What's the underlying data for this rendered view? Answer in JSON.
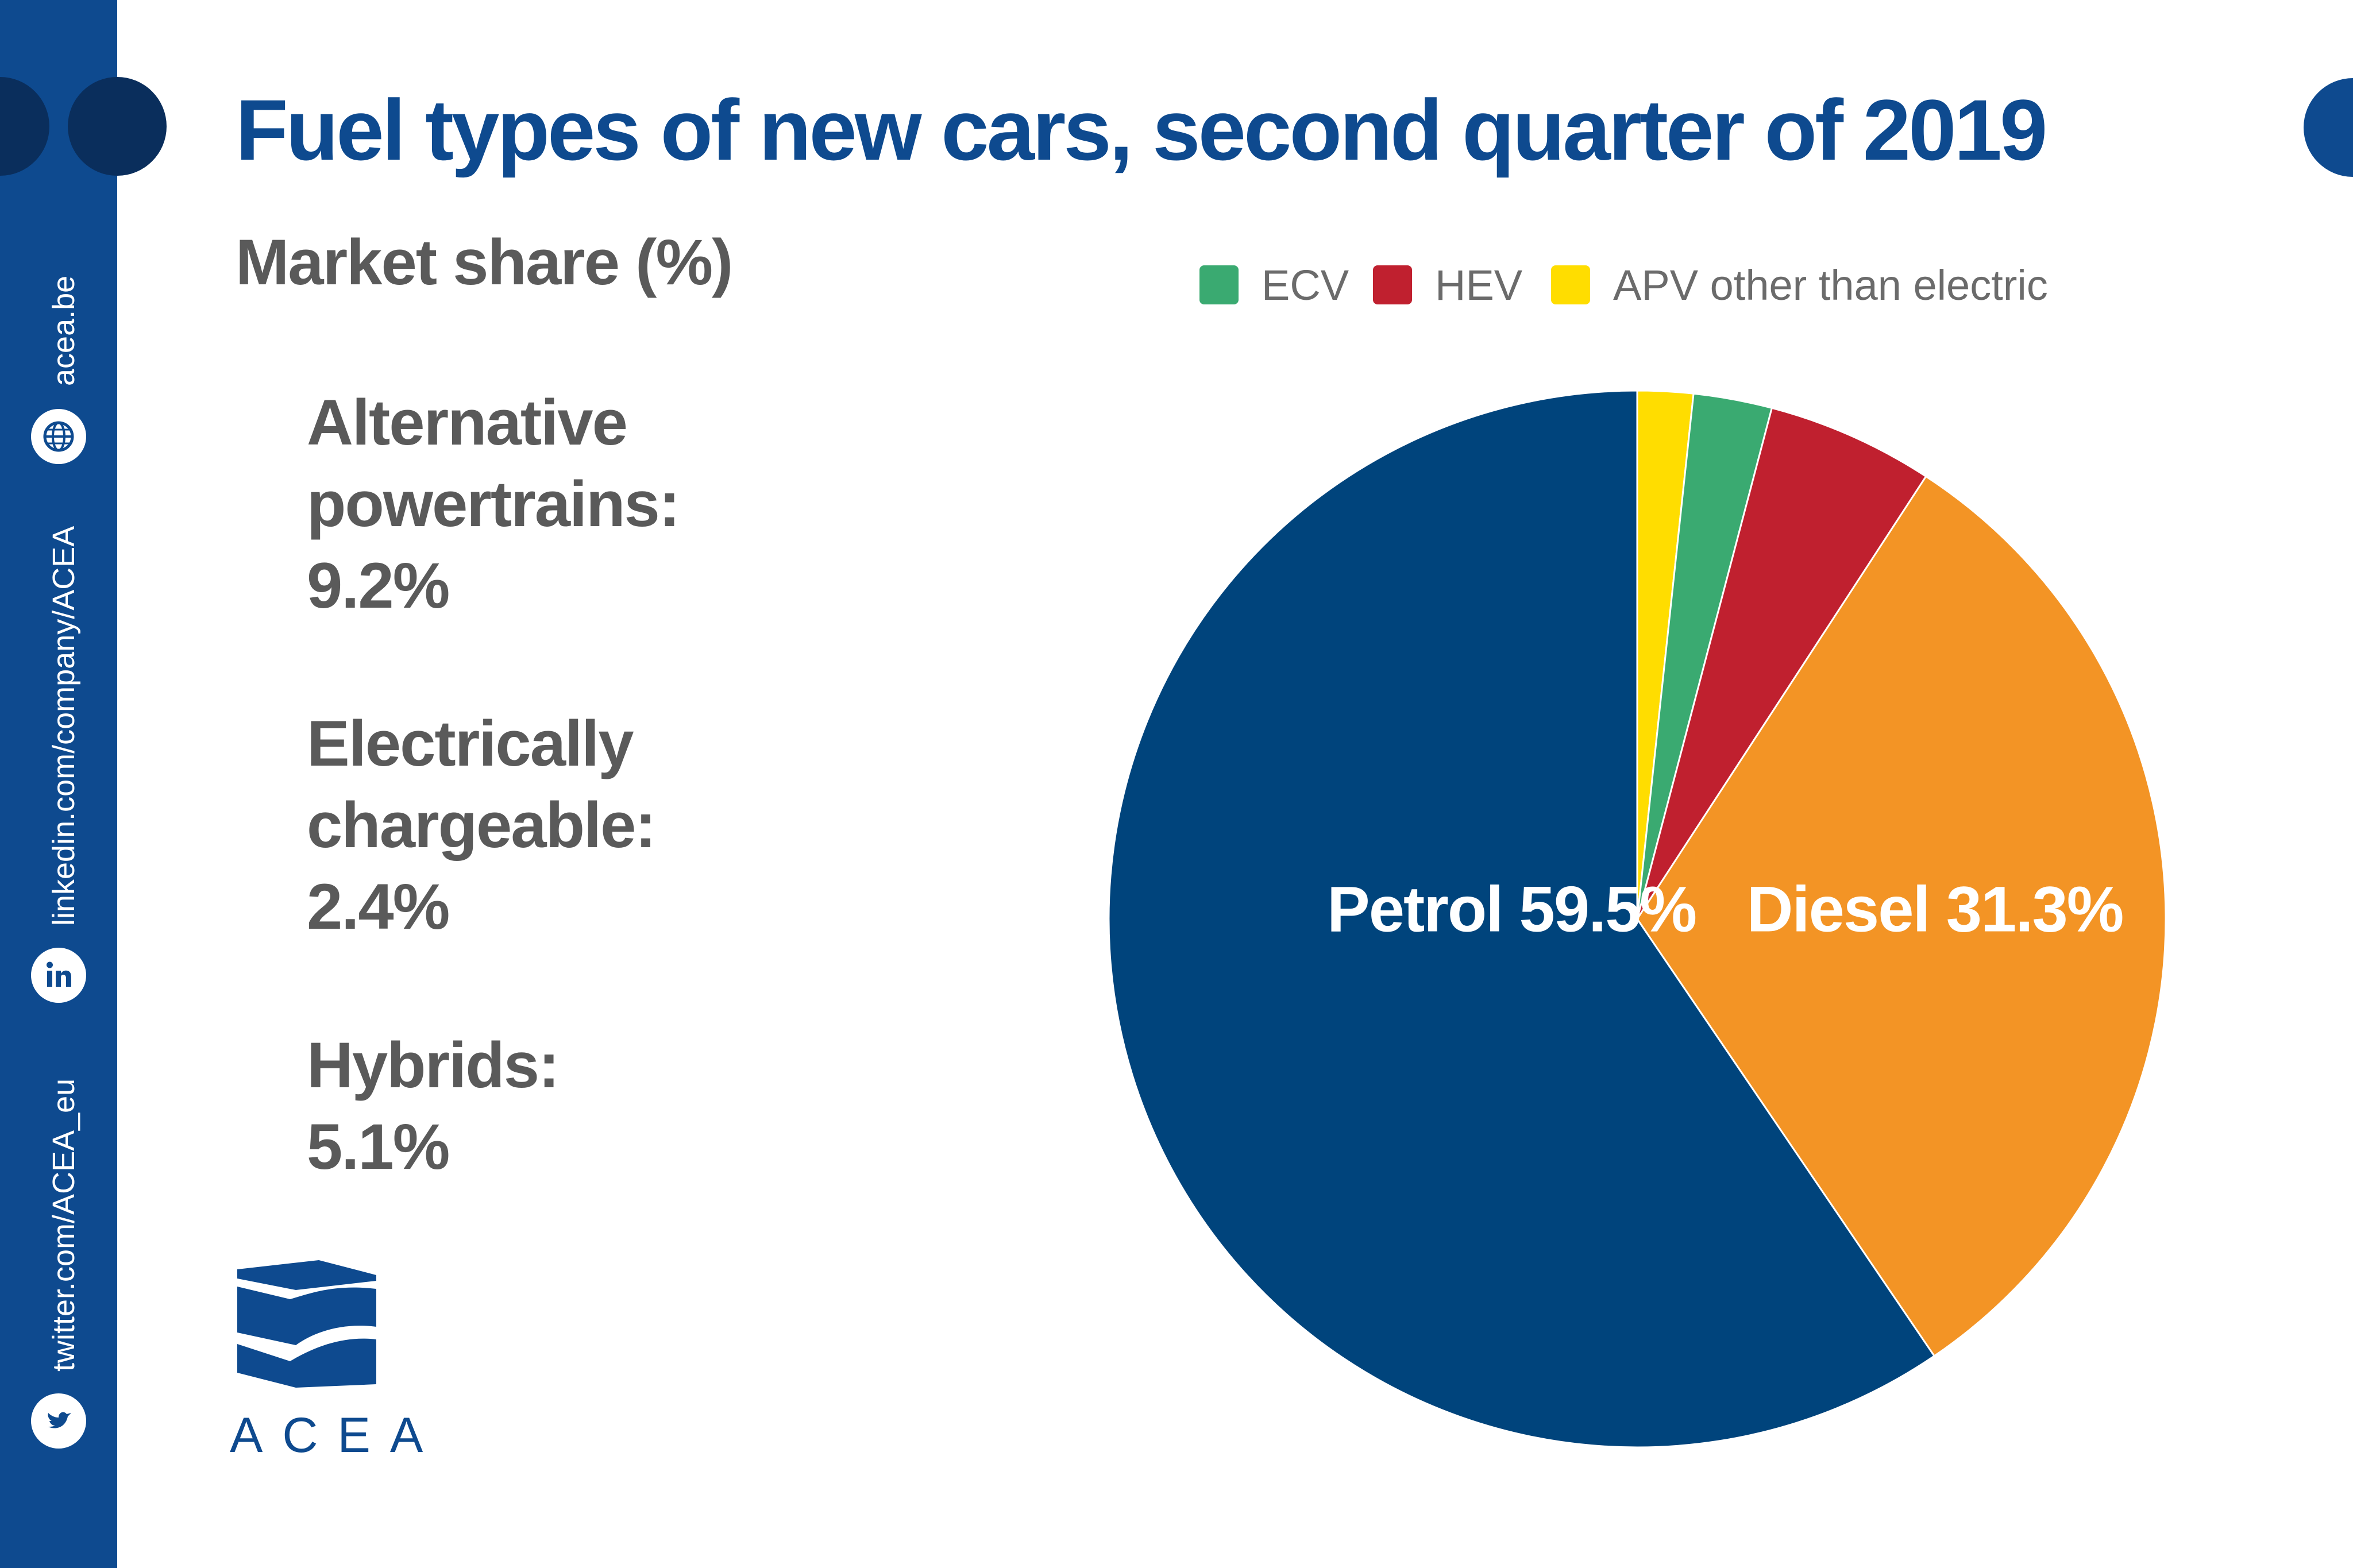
{
  "title": "Fuel types of new cars, second quarter of 2019",
  "subtitle": "Market share (%)",
  "stats": [
    {
      "lines": [
        "Alternative",
        "powertrains:",
        "9.2%"
      ]
    },
    {
      "lines": [
        "Electrically",
        "chargeable:",
        "2.4%"
      ]
    },
    {
      "lines": [
        "Hybrids:",
        "5.1%"
      ]
    }
  ],
  "sidebar": {
    "website": "acea.be",
    "linkedin": "linkedin.com/company/ACEA",
    "twitter": "twitter.com/ACEA_eu"
  },
  "brand": "ACEA",
  "colors": {
    "brand_blue": "#0e4a8f",
    "petrol": "#00447c",
    "diesel": "#f39425",
    "hev": "#c0202f",
    "ecv": "#3aaa71",
    "apv": "#ffdd00"
  },
  "chart_data": {
    "type": "pie",
    "start": "12 o'clock, clockwise",
    "legend_position": "top",
    "legend": [
      "ECV",
      "HEV",
      "APV other than electric"
    ],
    "slices": [
      {
        "name": "APV",
        "value": 1.7,
        "color": "#ffdd00",
        "label": ""
      },
      {
        "name": "ECV",
        "value": 2.4,
        "color": "#3aaa71",
        "label": ""
      },
      {
        "name": "HEV",
        "value": 5.1,
        "color": "#c0202f",
        "label": ""
      },
      {
        "name": "Diesel",
        "value": 31.3,
        "color": "#f39425",
        "label": "Diesel 31.3%"
      },
      {
        "name": "Petrol",
        "value": 59.5,
        "color": "#00447c",
        "label": "Petrol 59.5%"
      }
    ]
  }
}
